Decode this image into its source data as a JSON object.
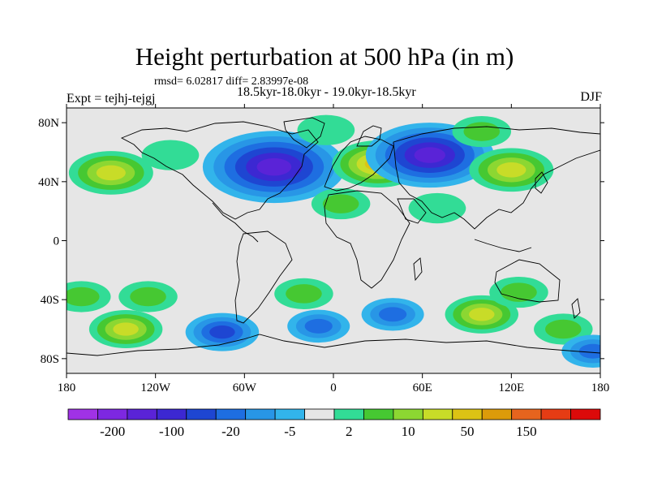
{
  "header": {
    "title": "Height perturbation at 500 hPa (in m)",
    "stats": "rmsd= 6.02817 diff= 2.83997e-08",
    "period": "18.5kyr-18.0kyr - 19.0kyr-18.5kyr",
    "experiment": "Expt = tejhj-tejgj",
    "season": "DJF"
  },
  "chart_data": {
    "type": "heatmap",
    "title": "Height perturbation at 500 hPa (in m)",
    "xlabel": "",
    "ylabel": "",
    "xlim": [
      -180,
      180
    ],
    "ylim": [
      -90,
      90
    ],
    "x_ticks": [
      {
        "value": -180,
        "label": "180"
      },
      {
        "value": -120,
        "label": "120W"
      },
      {
        "value": -60,
        "label": "60W"
      },
      {
        "value": 0,
        "label": "0"
      },
      {
        "value": 60,
        "label": "60E"
      },
      {
        "value": 120,
        "label": "120E"
      },
      {
        "value": 180,
        "label": "180"
      }
    ],
    "y_ticks": [
      {
        "value": 80,
        "label": "80N"
      },
      {
        "value": 40,
        "label": "40N"
      },
      {
        "value": 0,
        "label": "0"
      },
      {
        "value": -40,
        "label": "40S"
      },
      {
        "value": -80,
        "label": "80S"
      }
    ],
    "colorbar": {
      "colors": [
        "#a032e6",
        "#7d28e1",
        "#5a23d7",
        "#3c28d2",
        "#1e46d2",
        "#1e6ee1",
        "#2896e6",
        "#32b4eb",
        "#e6e6e6",
        "#32dc96",
        "#46c832",
        "#8cd732",
        "#c8dc28",
        "#dcc314",
        "#dc9b0a",
        "#e6641e",
        "#e63c14",
        "#dc0a0a"
      ],
      "tick_labels": [
        "-200",
        "-100",
        "-20",
        "-5",
        "2",
        "10",
        "50",
        "150"
      ]
    },
    "anomalies": [
      {
        "lon": -150,
        "lat": 46,
        "value": 40
      },
      {
        "lon": -110,
        "lat": 58,
        "value": 3
      },
      {
        "lon": -40,
        "lat": 50,
        "value": -120
      },
      {
        "lon": -5,
        "lat": 75,
        "value": 3
      },
      {
        "lon": 30,
        "lat": 52,
        "value": 50
      },
      {
        "lon": 65,
        "lat": 58,
        "value": -100
      },
      {
        "lon": 100,
        "lat": 74,
        "value": 5
      },
      {
        "lon": 120,
        "lat": 48,
        "value": 40
      },
      {
        "lon": 5,
        "lat": 25,
        "value": 5
      },
      {
        "lon": 70,
        "lat": 22,
        "value": 3
      },
      {
        "lon": -170,
        "lat": -38,
        "value": 5
      },
      {
        "lon": -140,
        "lat": -60,
        "value": 25
      },
      {
        "lon": -125,
        "lat": -38,
        "value": 5
      },
      {
        "lon": -75,
        "lat": -62,
        "value": -25
      },
      {
        "lon": -10,
        "lat": -58,
        "value": -10
      },
      {
        "lon": -20,
        "lat": -36,
        "value": 5
      },
      {
        "lon": 40,
        "lat": -50,
        "value": -10
      },
      {
        "lon": 100,
        "lat": -50,
        "value": 25
      },
      {
        "lon": 125,
        "lat": -35,
        "value": 5
      },
      {
        "lon": 155,
        "lat": -60,
        "value": 5
      },
      {
        "lon": 175,
        "lat": -75,
        "value": -10
      }
    ]
  }
}
